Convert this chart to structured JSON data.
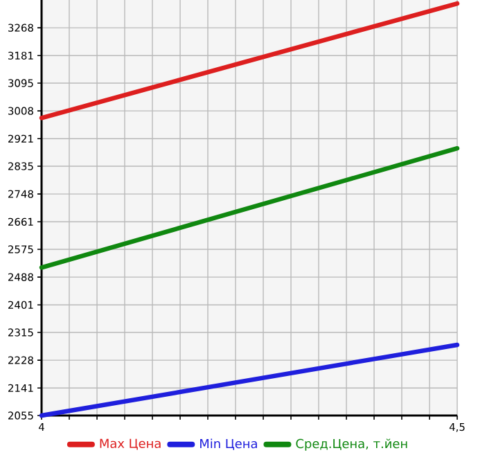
{
  "chart_data": {
    "type": "line",
    "x": [
      4,
      4.5
    ],
    "series": [
      {
        "name": "Max Цена",
        "color": "#dd1f1f",
        "values": [
          2986,
          3344
        ]
      },
      {
        "name": "Min Цена",
        "color": "#1f1fdd",
        "values": [
          2055,
          2276
        ]
      },
      {
        "name": "Сред.Цена, т.йен",
        "color": "#108810",
        "values": [
          2518,
          2891
        ]
      }
    ],
    "xlim": [
      4,
      4.5
    ],
    "xticks": [
      {
        "value": 4,
        "label": "4"
      },
      {
        "value": 4.0333,
        "label": null
      },
      {
        "value": 4.0667,
        "label": null
      },
      {
        "value": 4.1,
        "label": null
      },
      {
        "value": 4.1333,
        "label": null
      },
      {
        "value": 4.1667,
        "label": null
      },
      {
        "value": 4.2,
        "label": null
      },
      {
        "value": 4.2333,
        "label": null
      },
      {
        "value": 4.2667,
        "label": null
      },
      {
        "value": 4.3,
        "label": null
      },
      {
        "value": 4.3333,
        "label": null
      },
      {
        "value": 4.3667,
        "label": null
      },
      {
        "value": 4.4,
        "label": null
      },
      {
        "value": 4.4333,
        "label": null
      },
      {
        "value": 4.4667,
        "label": null
      },
      {
        "value": 4.5,
        "label": "4,5"
      }
    ],
    "ylim": [
      2055,
      3355
    ],
    "yticks": [
      2055,
      2141,
      2228,
      2315,
      2401,
      2488,
      2575,
      2661,
      2748,
      2835,
      2921,
      3008,
      3095,
      3181,
      3268
    ],
    "grid": true,
    "legend": "bottom",
    "marker": "none",
    "line_style": "solid"
  }
}
